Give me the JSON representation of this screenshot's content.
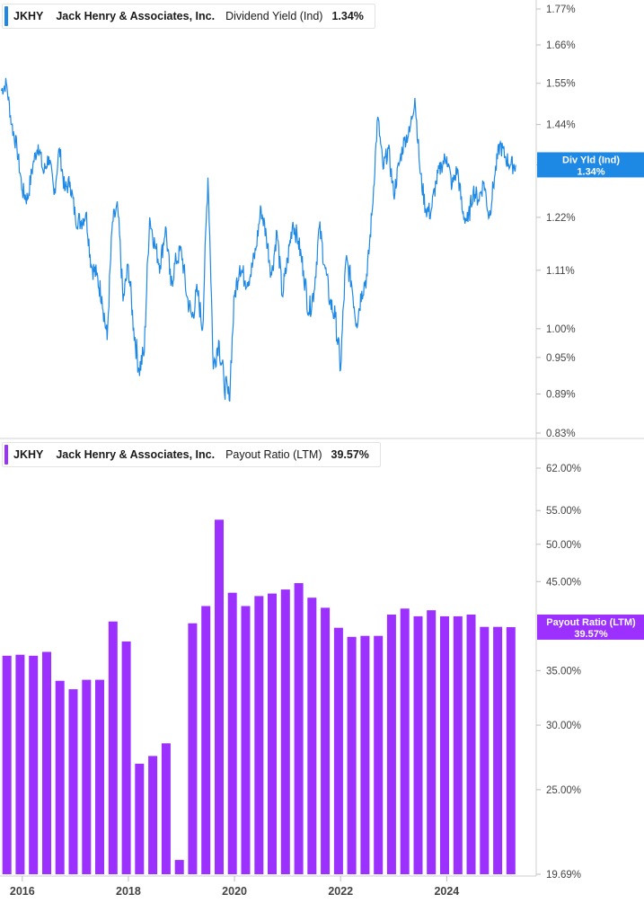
{
  "top_legend": {
    "ticker": "JKHY",
    "company": "Jack Henry & Associates, Inc.",
    "metric": "Dividend Yield (Ind)",
    "value": "1.34%",
    "color": "#1e88e5"
  },
  "bottom_legend": {
    "ticker": "JKHY",
    "company": "Jack Henry & Associates, Inc.",
    "metric": "Payout Ratio (LTM)",
    "value": "39.57%",
    "color": "#9b30ff"
  },
  "chart_data": [
    {
      "type": "line",
      "title": "JKHY Dividend Yield (Ind)",
      "scale": "log",
      "ylim": [
        0.83,
        1.77
      ],
      "yticks": [
        "1.77%",
        "1.66%",
        "1.55%",
        "1.44%",
        "1.34%",
        "1.22%",
        "1.11%",
        "1.00%",
        "0.95%",
        "0.89%",
        "0.83%"
      ],
      "ytick_values": [
        1.77,
        1.66,
        1.55,
        1.44,
        1.34,
        1.22,
        1.11,
        1.0,
        0.95,
        0.89,
        0.83
      ],
      "xlim": [
        2015.58,
        2025.67
      ],
      "x": [
        2015.6,
        2015.7,
        2015.8,
        2015.9,
        2016.0,
        2016.1,
        2016.2,
        2016.3,
        2016.4,
        2016.5,
        2016.6,
        2016.7,
        2016.8,
        2016.9,
        2017.0,
        2017.1,
        2017.2,
        2017.3,
        2017.4,
        2017.5,
        2017.6,
        2017.7,
        2017.8,
        2017.9,
        2018.0,
        2018.1,
        2018.2,
        2018.3,
        2018.4,
        2018.5,
        2018.6,
        2018.7,
        2018.8,
        2018.9,
        2019.0,
        2019.1,
        2019.2,
        2019.3,
        2019.4,
        2019.5,
        2019.6,
        2019.7,
        2019.8,
        2019.9,
        2020.0,
        2020.1,
        2020.2,
        2020.3,
        2020.4,
        2020.5,
        2020.6,
        2020.7,
        2020.8,
        2020.9,
        2021.0,
        2021.1,
        2021.2,
        2021.3,
        2021.4,
        2021.5,
        2021.6,
        2021.7,
        2021.8,
        2021.9,
        2022.0,
        2022.1,
        2022.2,
        2022.3,
        2022.4,
        2022.5,
        2022.6,
        2022.7,
        2022.8,
        2022.9,
        2023.0,
        2023.1,
        2023.2,
        2023.3,
        2023.4,
        2023.5,
        2023.6,
        2023.7,
        2023.8,
        2023.9,
        2024.0,
        2024.1,
        2024.2,
        2024.3,
        2024.4,
        2024.5,
        2024.6,
        2024.7,
        2024.8,
        2024.9,
        2025.0,
        2025.1,
        2025.2,
        2025.3
      ],
      "y": [
        1.53,
        1.55,
        1.44,
        1.38,
        1.28,
        1.26,
        1.34,
        1.39,
        1.32,
        1.36,
        1.27,
        1.38,
        1.28,
        1.3,
        1.22,
        1.21,
        1.23,
        1.12,
        1.1,
        1.06,
        0.98,
        1.21,
        1.24,
        1.05,
        1.12,
        1.0,
        0.93,
        0.96,
        1.22,
        1.16,
        1.12,
        1.2,
        1.08,
        1.13,
        1.15,
        1.06,
        1.02,
        1.07,
        1.0,
        1.31,
        0.93,
        0.98,
        0.91,
        0.88,
        1.06,
        1.12,
        1.09,
        1.1,
        1.15,
        1.24,
        1.18,
        1.1,
        1.19,
        1.06,
        1.13,
        1.21,
        1.17,
        1.11,
        1.03,
        1.07,
        1.2,
        1.12,
        1.05,
        1.02,
        0.93,
        1.13,
        1.09,
        1.01,
        1.07,
        1.1,
        1.24,
        1.46,
        1.33,
        1.38,
        1.27,
        1.34,
        1.4,
        1.42,
        1.51,
        1.32,
        1.24,
        1.23,
        1.3,
        1.34,
        1.36,
        1.29,
        1.33,
        1.23,
        1.21,
        1.28,
        1.26,
        1.3,
        1.22,
        1.31,
        1.39,
        1.36,
        1.34,
        1.34
      ],
      "current_tag": {
        "label": "Div Yld (Ind)",
        "value": "1.34%",
        "y": 1.34
      }
    },
    {
      "type": "bar",
      "title": "JKHY Payout Ratio (LTM)",
      "scale": "log",
      "ylim": [
        19.69,
        62.0
      ],
      "yticks": [
        "62.00%",
        "55.00%",
        "50.00%",
        "45.00%",
        "35.00%",
        "30.00%",
        "25.00%",
        "19.69%"
      ],
      "ytick_values": [
        62.0,
        55.0,
        50.0,
        45.0,
        35.0,
        30.0,
        25.0,
        19.69
      ],
      "xlim": [
        2015.58,
        2025.67
      ],
      "x": [
        2015.71,
        2015.96,
        2016.21,
        2016.46,
        2016.71,
        2016.96,
        2017.21,
        2017.46,
        2017.71,
        2017.96,
        2018.21,
        2018.46,
        2018.71,
        2018.96,
        2019.21,
        2019.46,
        2019.71,
        2019.96,
        2020.21,
        2020.46,
        2020.71,
        2020.96,
        2021.21,
        2021.46,
        2021.71,
        2021.96,
        2022.21,
        2022.46,
        2022.71,
        2022.96,
        2023.21,
        2023.46,
        2023.71,
        2023.96,
        2024.21,
        2024.46,
        2024.71,
        2024.96,
        2025.21
      ],
      "values": [
        36.5,
        36.6,
        36.5,
        36.9,
        34.0,
        33.2,
        34.1,
        34.1,
        40.2,
        38.0,
        26.9,
        27.5,
        28.5,
        20.5,
        40.0,
        42.0,
        53.6,
        43.6,
        42.0,
        43.2,
        43.5,
        44.0,
        44.8,
        43.0,
        41.8,
        39.5,
        38.5,
        38.6,
        38.6,
        41.0,
        41.7,
        40.8,
        41.5,
        40.8,
        40.8,
        41.0,
        39.6,
        39.6,
        39.57
      ],
      "current_tag": {
        "label": "Payout Ratio (LTM)",
        "value": "39.57%",
        "y": 39.57
      }
    }
  ],
  "x_axis": {
    "labels": [
      "2016",
      "2018",
      "2020",
      "2022",
      "2024"
    ],
    "values": [
      2016,
      2018,
      2020,
      2022,
      2024
    ]
  }
}
